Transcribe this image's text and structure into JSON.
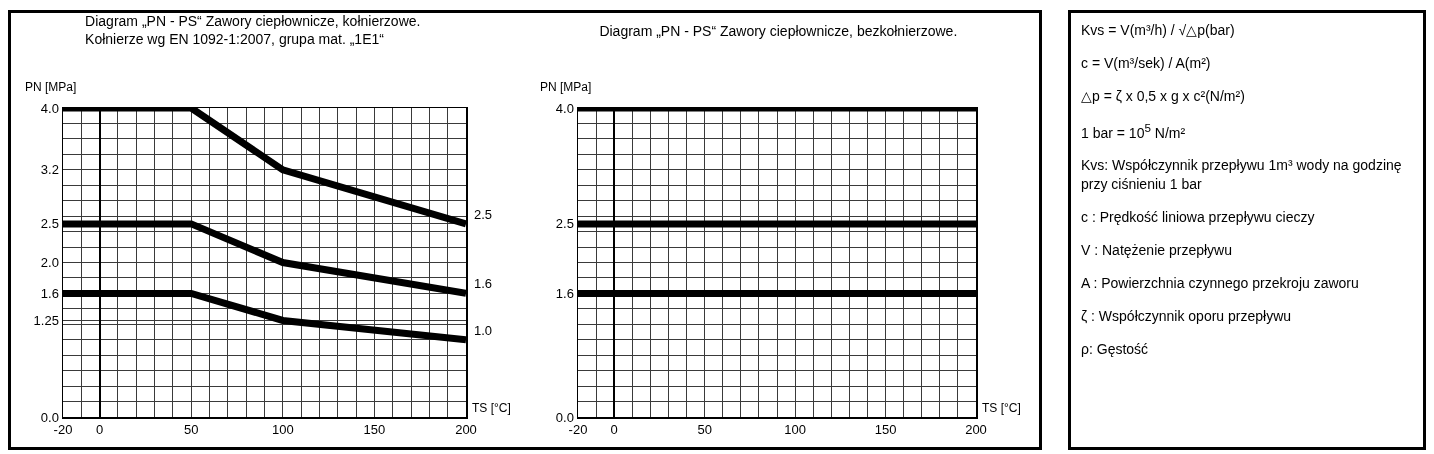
{
  "chart_data": [
    {
      "type": "line",
      "title": "Diagram „PN - PS“ Zawory ciepłownicze, kołnierzowe.",
      "subtitle": "Kołnierze wg EN 1092-1:2007, grupa mat. „1E1“",
      "xlabel": "TS [°C]",
      "ylabel": "PN [MPa]",
      "x": [
        -20,
        50,
        100,
        200
      ],
      "series": [
        {
          "color": "#000000",
          "values": [
            4.0,
            4.0,
            3.2,
            2.5
          ],
          "value_labels": [
            null,
            null,
            null,
            "2.5"
          ]
        },
        {
          "color": "#000000",
          "values": [
            2.5,
            2.5,
            2.0,
            1.6
          ],
          "value_labels": [
            null,
            null,
            null,
            "1.6"
          ]
        },
        {
          "color": "#000000",
          "values": [
            1.6,
            1.6,
            1.25,
            1.0
          ],
          "value_labels": [
            null,
            null,
            null,
            "1.0"
          ]
        }
      ],
      "xlim": [
        -20,
        200
      ],
      "ylim": [
        0,
        4
      ],
      "xticks": [
        -20,
        {
          "value": -10,
          "label": null
        },
        0,
        {
          "value": 10,
          "label": null
        },
        {
          "value": 20,
          "label": null
        },
        {
          "value": 30,
          "label": null
        },
        {
          "value": 40,
          "label": null
        },
        50,
        {
          "value": 60,
          "label": null
        },
        {
          "value": 70,
          "label": null
        },
        {
          "value": 80,
          "label": null
        },
        {
          "value": 90,
          "label": null
        },
        100,
        {
          "value": 110,
          "label": null
        },
        {
          "value": 120,
          "label": null
        },
        {
          "value": 130,
          "label": null
        },
        {
          "value": 140,
          "label": null
        },
        150,
        {
          "value": 160,
          "label": null
        },
        {
          "value": 170,
          "label": null
        },
        {
          "value": 180,
          "label": null
        },
        {
          "value": 190,
          "label": null
        },
        200
      ],
      "yticks": [
        {
          "value": 0,
          "label": "0.0"
        },
        {
          "value": 0.2,
          "label": null
        },
        {
          "value": 0.4,
          "label": null
        },
        {
          "value": 0.6,
          "label": null
        },
        {
          "value": 0.8,
          "label": null
        },
        {
          "value": 1.0,
          "label": null
        },
        {
          "value": 1.2,
          "label": null
        },
        1.25,
        {
          "value": 1.4,
          "label": null
        },
        1.6,
        {
          "value": 1.8,
          "label": null
        },
        {
          "value": 2,
          "label": "2.0"
        },
        {
          "value": 2.2,
          "label": null
        },
        {
          "value": 2.4,
          "label": null
        },
        2.5,
        {
          "value": 2.6,
          "label": null
        },
        {
          "value": 2.8,
          "label": null
        },
        {
          "value": 3.0,
          "label": null
        },
        3.2,
        {
          "value": 3.4,
          "label": null
        },
        {
          "value": 3.6,
          "label": null
        },
        {
          "value": 3.8,
          "label": null
        },
        {
          "value": 4,
          "label": "4.0"
        }
      ],
      "grid": true,
      "line_style": "solid"
    },
    {
      "type": "line",
      "title": "Diagram „PN - PS“ Zawory ciepłownicze, bezkołnierzowe.",
      "xlabel": "TS [°C]",
      "ylabel": "PN [MPa]",
      "x": [
        -20,
        200
      ],
      "series": [
        {
          "color": "#000000",
          "values": [
            4.0,
            4.0
          ]
        },
        {
          "color": "#000000",
          "values": [
            2.5,
            2.5
          ]
        },
        {
          "color": "#000000",
          "values": [
            1.6,
            1.6
          ]
        }
      ],
      "xlim": [
        -20,
        200
      ],
      "ylim": [
        0,
        4
      ],
      "xticks": [
        -20,
        {
          "value": -10,
          "label": null
        },
        0,
        {
          "value": 10,
          "label": null
        },
        {
          "value": 20,
          "label": null
        },
        {
          "value": 30,
          "label": null
        },
        {
          "value": 40,
          "label": null
        },
        50,
        {
          "value": 60,
          "label": null
        },
        {
          "value": 70,
          "label": null
        },
        {
          "value": 80,
          "label": null
        },
        {
          "value": 90,
          "label": null
        },
        100,
        {
          "value": 110,
          "label": null
        },
        {
          "value": 120,
          "label": null
        },
        {
          "value": 130,
          "label": null
        },
        {
          "value": 140,
          "label": null
        },
        150,
        {
          "value": 160,
          "label": null
        },
        {
          "value": 170,
          "label": null
        },
        {
          "value": 180,
          "label": null
        },
        {
          "value": 190,
          "label": null
        },
        200
      ],
      "yticks": [
        {
          "value": 0,
          "label": "0.0"
        },
        {
          "value": 0.2,
          "label": null
        },
        {
          "value": 0.4,
          "label": null
        },
        {
          "value": 0.6,
          "label": null
        },
        {
          "value": 0.8,
          "label": null
        },
        {
          "value": 1.0,
          "label": null
        },
        {
          "value": 1.2,
          "label": null
        },
        {
          "value": 1.4,
          "label": null
        },
        1.6,
        {
          "value": 1.8,
          "label": null
        },
        {
          "value": 2.0,
          "label": null
        },
        {
          "value": 2.2,
          "label": null
        },
        {
          "value": 2.4,
          "label": null
        },
        2.5,
        {
          "value": 2.6,
          "label": null
        },
        {
          "value": 2.8,
          "label": null
        },
        {
          "value": 3.0,
          "label": null
        },
        {
          "value": 3.2,
          "label": null
        },
        {
          "value": 3.4,
          "label": null
        },
        {
          "value": 3.6,
          "label": null
        },
        {
          "value": 3.8,
          "label": null
        },
        {
          "value": 4,
          "label": "4.0"
        }
      ],
      "grid": true,
      "line_style": "solid"
    },
    {
      "type": "other",
      "annotations": [
        "Kvs = V(m³/h) / √△p(bar)",
        "c = V(m³/sek) / A(m²)",
        "△p = ζ x 0,5 x g x c²(N/m²)",
        "1 bar = 10$^{5}$ N/m²",
        "Kvs: Współczynnik przepływu 1m³ wody na godzinę przy ciśnieniu 1 bar",
        "c : Prędkość liniowa przepływu cieczy",
        "V : Natężenie przepływu",
        "A : Powierzchnia czynnego przekroju zaworu",
        "ζ : Współczynnik oporu przepływu",
        "ρ: Gęstość"
      ]
    }
  ]
}
